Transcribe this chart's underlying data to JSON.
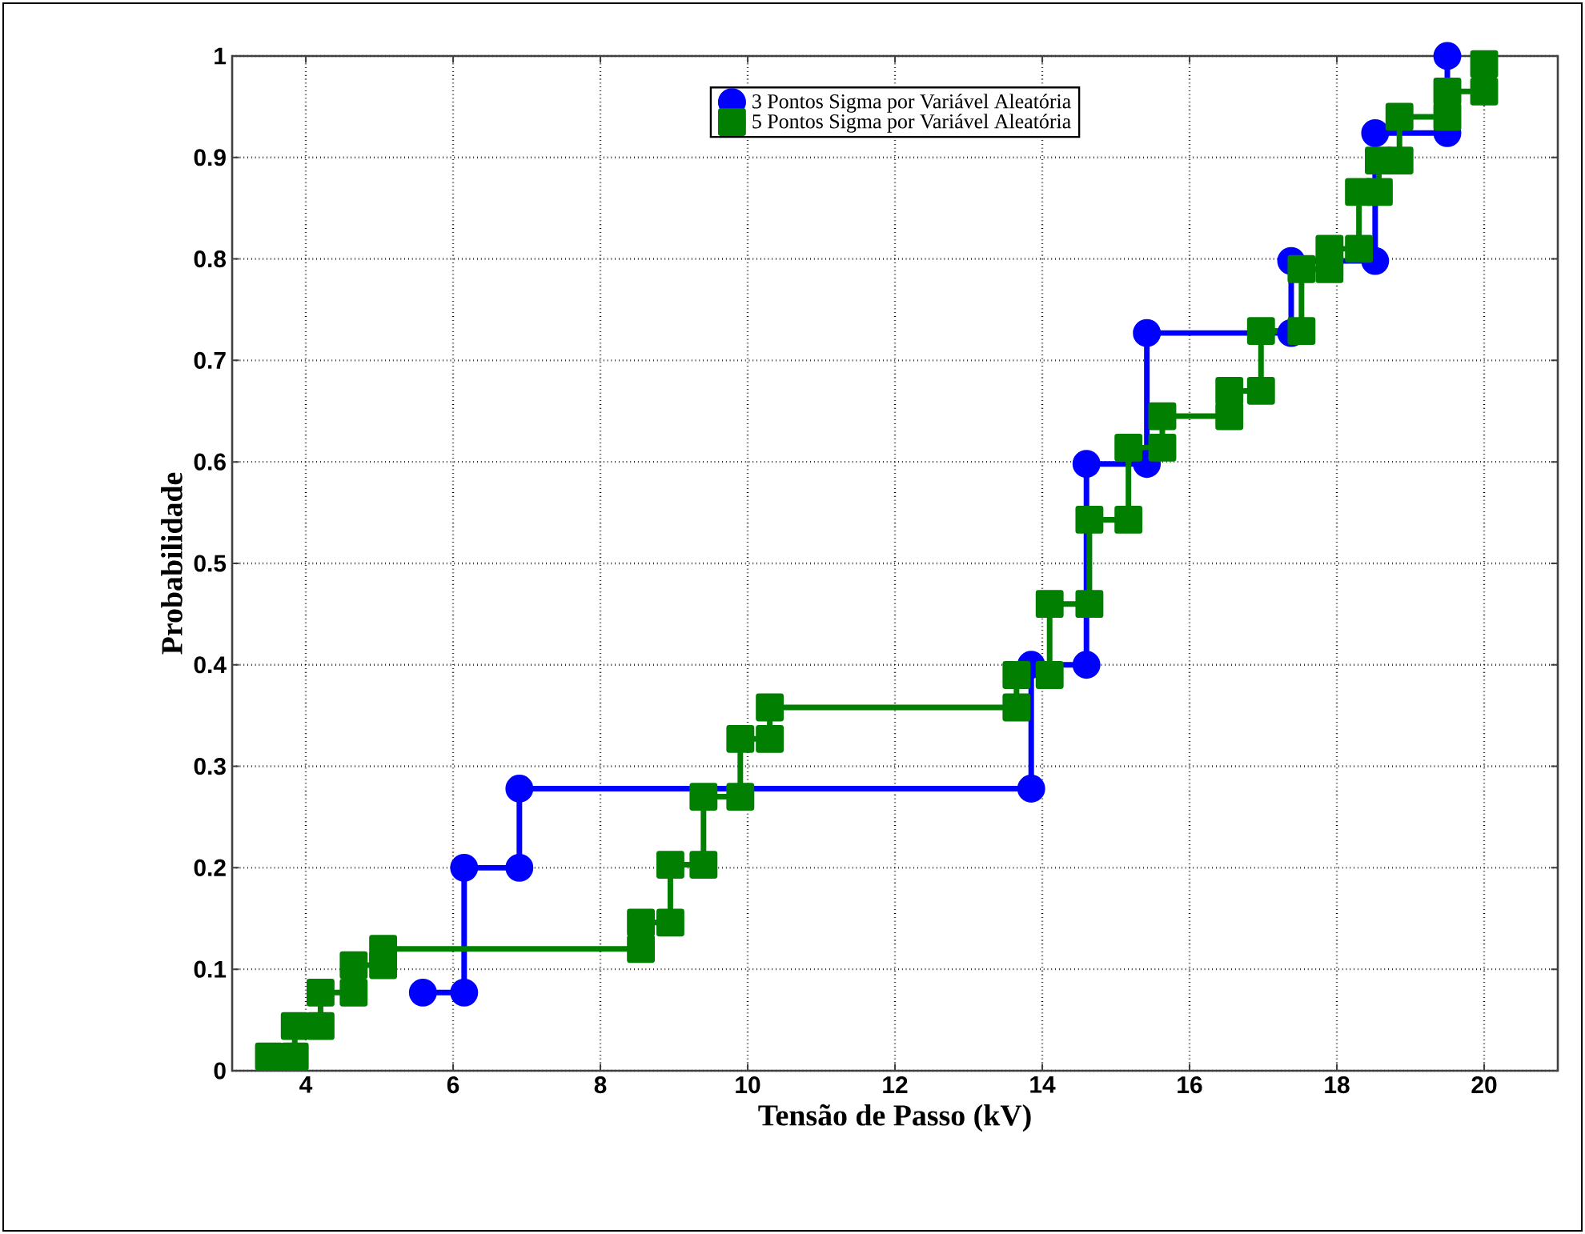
{
  "chart_data": {
    "type": "line",
    "xlabel": "Tensão de Passo (kV)",
    "ylabel": "Probabilidade",
    "xlim": [
      3,
      21
    ],
    "ylim": [
      0,
      1
    ],
    "xticks": [
      4,
      6,
      8,
      10,
      12,
      14,
      16,
      18,
      20
    ],
    "yticks": [
      0,
      0.1,
      0.2,
      0.3,
      0.4,
      0.5,
      0.6,
      0.7,
      0.8,
      0.9,
      1
    ],
    "grid": true,
    "legend": "top",
    "line_style": "solid",
    "series": [
      {
        "name": "3 Pontos Sigma por Variável Aleatória",
        "color": "#0000ff",
        "marker": "circle",
        "x": [
          5.59,
          6.15,
          6.15,
          6.9,
          6.9,
          13.85,
          13.85,
          14.6,
          14.6,
          15.42,
          15.42,
          17.38,
          17.38,
          18.52,
          18.52,
          19.5,
          19.5
        ],
        "values": [
          0.077,
          0.077,
          0.2,
          0.2,
          0.278,
          0.278,
          0.4,
          0.4,
          0.598,
          0.598,
          0.727,
          0.727,
          0.798,
          0.798,
          0.924,
          0.924,
          1.0
        ]
      },
      {
        "name": "5 Pontos Sigma por Variável Aleatória",
        "color": "#007f00",
        "marker": "square",
        "x": [
          3.5,
          3.85,
          3.85,
          4.2,
          4.2,
          4.65,
          4.65,
          5.05,
          5.05,
          8.55,
          8.55,
          8.95,
          8.95,
          9.4,
          9.4,
          9.9,
          9.9,
          10.3,
          10.3,
          13.65,
          13.65,
          14.1,
          14.1,
          14.64,
          14.64,
          15.17,
          15.17,
          15.63,
          15.63,
          16.54,
          16.54,
          16.97,
          16.97,
          17.52,
          17.52,
          17.9,
          17.9,
          18.3,
          18.3,
          18.57,
          18.57,
          18.85,
          18.85,
          19.5,
          19.5,
          20.0,
          20.0
        ],
        "values": [
          0.014,
          0.014,
          0.044,
          0.044,
          0.077,
          0.077,
          0.104,
          0.104,
          0.12,
          0.12,
          0.146,
          0.146,
          0.203,
          0.203,
          0.27,
          0.27,
          0.327,
          0.327,
          0.358,
          0.358,
          0.39,
          0.39,
          0.46,
          0.46,
          0.543,
          0.543,
          0.614,
          0.614,
          0.645,
          0.645,
          0.67,
          0.67,
          0.729,
          0.729,
          0.79,
          0.79,
          0.81,
          0.81,
          0.866,
          0.866,
          0.897,
          0.897,
          0.94,
          0.94,
          0.965,
          0.965,
          0.992
        ]
      }
    ]
  }
}
